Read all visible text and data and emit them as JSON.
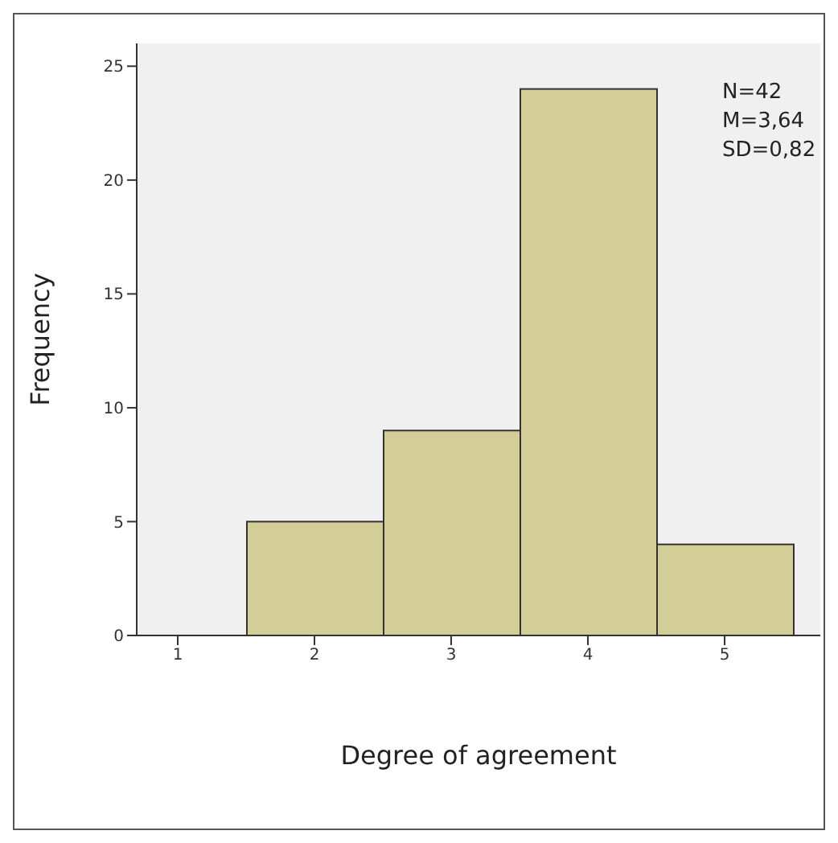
{
  "chart_data": {
    "type": "histogram",
    "xlabel": "Degree of agreement",
    "ylabel": "Frequency",
    "bins": [
      1.5,
      2.5,
      3.5,
      4.5,
      5.5
    ],
    "values": [
      5,
      9,
      24,
      4
    ],
    "color": "#d3ce97",
    "xlim": [
      0.7,
      5.7
    ],
    "xticks": [
      1,
      2,
      3,
      4,
      5
    ],
    "ylim": [
      0,
      26
    ],
    "yticks": [
      0,
      5,
      10,
      15,
      20,
      25
    ],
    "annotations": [
      "N=42",
      "M=3,64",
      "SD=0,82"
    ],
    "grid": false
  }
}
